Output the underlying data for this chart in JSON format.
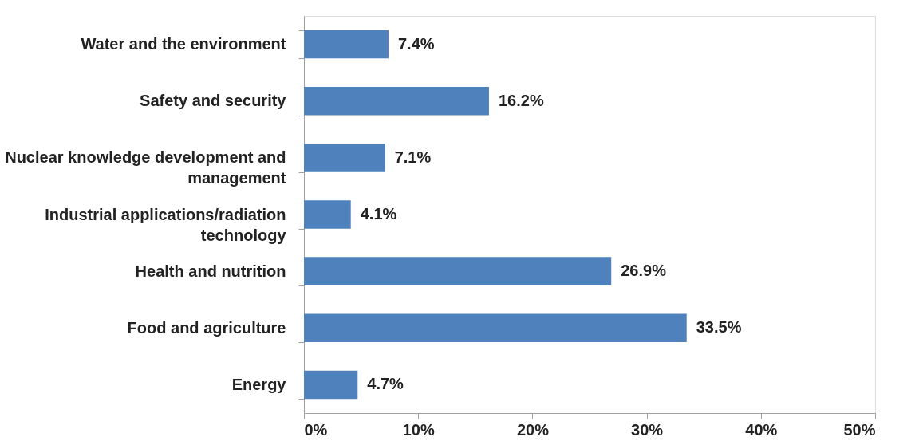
{
  "chart_data": {
    "type": "bar",
    "orientation": "horizontal",
    "categories": [
      "Water and the environment",
      "Safety and security",
      "Nuclear knowledge development and management",
      "Industrial applications/radiation technology",
      "Health and nutrition",
      "Food and agriculture",
      "Energy"
    ],
    "values": [
      7.4,
      16.2,
      7.1,
      4.1,
      26.9,
      33.5,
      4.7
    ],
    "value_labels": [
      "7.4%",
      "16.2%",
      "7.1%",
      "4.1%",
      "26.9%",
      "33.5%",
      "4.7%"
    ],
    "color": "#4f81bd",
    "xlim": [
      0,
      50
    ],
    "xticks": [
      {
        "value": 0,
        "label": "0%"
      },
      {
        "value": 10,
        "label": "10%"
      },
      {
        "value": 20,
        "label": "20%"
      },
      {
        "value": 30,
        "label": "30%"
      },
      {
        "value": 40,
        "label": "40%"
      },
      {
        "value": 50,
        "label": "50%"
      }
    ],
    "grid": false
  }
}
